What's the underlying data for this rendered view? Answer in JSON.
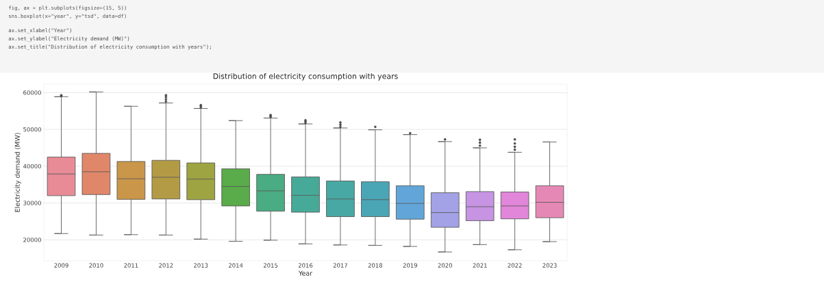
{
  "chart_data": {
    "type": "box",
    "title": "Distribution of electricity consumption with years",
    "xlabel": "Year",
    "ylabel": "Electricity demand (MW)",
    "annotations": [
      "fig, ax = plt.subplots(figsize=(15, 5))",
      "sns.boxplot(x=\"year\", y=\"tsd\", data=df)",
      "ax.set_xlabel(\"Year\")",
      "ax.set_ylabel(\"Electricity demand (MW)\")",
      "ax.set_title(\"Distribution of electricity consumption with years\");"
    ],
    "categories": [
      "2009",
      "2010",
      "2011",
      "2012",
      "2013",
      "2014",
      "2015",
      "2016",
      "2017",
      "2018",
      "2019",
      "2020",
      "2021",
      "2022",
      "2023"
    ],
    "colors": [
      "#e88b96",
      "#e0876a",
      "#c9964a",
      "#b39b45",
      "#9ea441",
      "#5aab49",
      "#4aac82",
      "#47aa98",
      "#48a8a3",
      "#4aa5b5",
      "#62a6d9",
      "#a3a2e6",
      "#c694e3",
      "#e186d9",
      "#e688b5"
    ],
    "boxes": [
      {
        "low": 21700,
        "q1": 32000,
        "median": 37900,
        "q3": 42500,
        "high": 58900,
        "outliers": [
          59100,
          59300
        ]
      },
      {
        "low": 21300,
        "q1": 32300,
        "median": 38500,
        "q3": 43500,
        "high": 60200
      },
      {
        "low": 21400,
        "q1": 31000,
        "median": 36600,
        "q3": 41300,
        "high": 56300
      },
      {
        "low": 21300,
        "q1": 31100,
        "median": 37000,
        "q3": 41600,
        "high": 57200,
        "outliers": [
          57600,
          58200,
          58800,
          59300
        ]
      },
      {
        "low": 20200,
        "q1": 30900,
        "median": 36500,
        "q3": 40900,
        "high": 55700,
        "outliers": [
          56000,
          56400,
          56600
        ]
      },
      {
        "low": 19600,
        "q1": 29200,
        "median": 34500,
        "q3": 39300,
        "high": 52400
      },
      {
        "low": 19900,
        "q1": 27800,
        "median": 33300,
        "q3": 37800,
        "high": 53100,
        "outliers": [
          53400,
          53700,
          53900
        ]
      },
      {
        "low": 18900,
        "q1": 27500,
        "median": 32100,
        "q3": 37100,
        "high": 51500,
        "outliers": [
          51800,
          52200,
          52500
        ]
      },
      {
        "low": 18600,
        "q1": 26300,
        "median": 31100,
        "q3": 36000,
        "high": 50400,
        "outliers": [
          50700,
          51300,
          51900
        ]
      },
      {
        "low": 18500,
        "q1": 26300,
        "median": 30900,
        "q3": 35800,
        "high": 49900,
        "outliers": [
          50700
        ]
      },
      {
        "low": 18200,
        "q1": 25600,
        "median": 29900,
        "q3": 34700,
        "high": 48600,
        "outliers": [
          49000
        ]
      },
      {
        "low": 16700,
        "q1": 23400,
        "median": 27400,
        "q3": 32800,
        "high": 46700,
        "outliers": [
          47300
        ]
      },
      {
        "low": 18700,
        "q1": 25200,
        "median": 29000,
        "q3": 33100,
        "high": 45000,
        "outliers": [
          45600,
          46400,
          47200
        ]
      },
      {
        "low": 17300,
        "q1": 25700,
        "median": 29200,
        "q3": 33000,
        "high": 43800,
        "outliers": [
          44500,
          45300,
          46200,
          47300
        ]
      },
      {
        "low": 19500,
        "q1": 26000,
        "median": 30200,
        "q3": 34700,
        "high": 46600
      }
    ],
    "ylim": [
      14300,
      62300
    ],
    "yticks": [
      20000,
      30000,
      40000,
      50000,
      60000
    ],
    "grid": "y"
  }
}
